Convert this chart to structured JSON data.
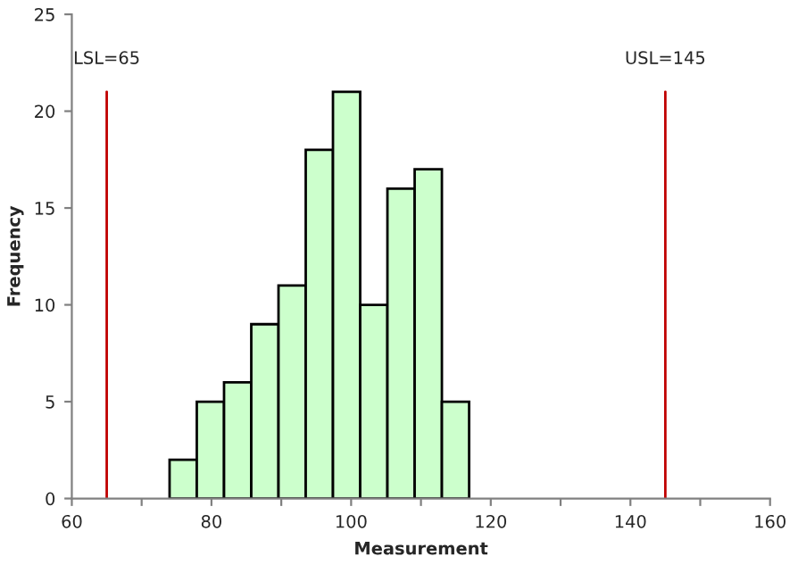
{
  "chart_data": {
    "type": "histogram",
    "xlabel": "Measurement",
    "ylabel": "Frequency",
    "bins": [
      74,
      77.9,
      81.8,
      85.7,
      89.6,
      93.5,
      97.4,
      101.3,
      105.2,
      109.1,
      113,
      116.9
    ],
    "values": [
      2,
      5,
      6,
      9,
      11,
      18,
      21,
      10,
      16,
      17,
      5
    ],
    "color": "#ccffcc",
    "xlim": [
      60,
      160
    ],
    "xticks": [
      60,
      {
        "value": 70,
        "label": null
      },
      80,
      {
        "value": 90,
        "label": null
      },
      100,
      {
        "value": 110,
        "label": null
      },
      120,
      {
        "value": 130,
        "label": null
      },
      140,
      {
        "value": 150,
        "label": null
      },
      160
    ],
    "ylim": [
      0,
      25
    ],
    "yticks": [
      0,
      5,
      10,
      15,
      20,
      25
    ],
    "ref_lines": [
      {
        "axis": "x",
        "value": 65,
        "label": "LSL=65",
        "color": "#c00000"
      },
      {
        "axis": "x",
        "value": 145,
        "label": "USL=145",
        "color": "#c00000"
      }
    ],
    "grid": false
  }
}
